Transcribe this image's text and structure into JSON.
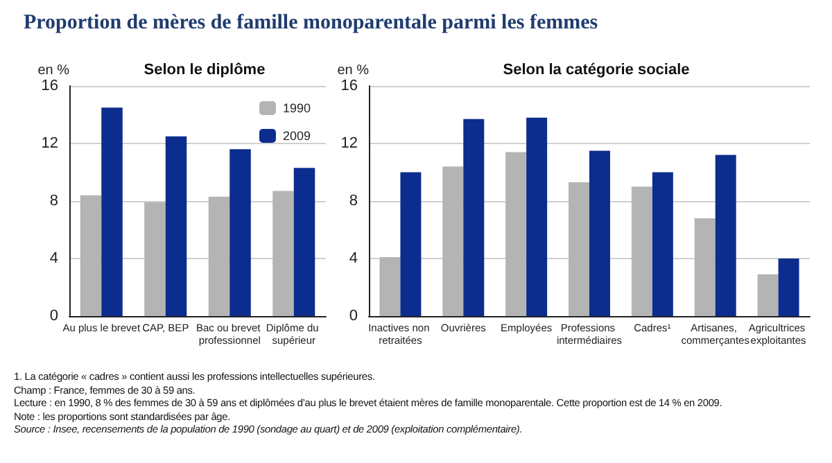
{
  "chart_data": [
    {
      "type": "bar",
      "title": "Proportion de mères de famille monoparentale parmi les femmes",
      "subtitle": "Selon le diplôme",
      "ylabel": "en %",
      "categories": [
        "Au plus le brevet",
        "CAP, BEP",
        "Bac ou brevet professionnel",
        "Diplôme du supérieur"
      ],
      "series": [
        {
          "name": "1990",
          "color": "#b4b4b4",
          "values": [
            8.4,
            7.9,
            8.3,
            8.7
          ]
        },
        {
          "name": "2009",
          "color": "#0c2d8e",
          "values": [
            14.5,
            12.5,
            11.6,
            10.3
          ]
        }
      ],
      "ylim": [
        0,
        16
      ],
      "yticks": [
        0,
        4,
        8,
        12,
        16
      ],
      "grid": "y",
      "legend": "top right",
      "annotations": [
        "1. La catégorie « cadres » contient aussi les professions intellectuelles supérieures.",
        "Champ : France, femmes de 30 à 59 ans.",
        "Lecture : en 1990, 8 % des femmes de 30 à 59 ans et diplômées d’au plus le brevet étaient mères de famille monoparentale. Cette proportion est de 14 % en 2009.",
        "Note : les proportions sont standardisées par âge.",
        "Source : Insee, recensements de la population de 1990 (sondage au quart) et de 2009 (exploitation complémentaire)."
      ]
    },
    {
      "type": "bar",
      "title": "Selon la catégorie sociale",
      "ylabel": "en %",
      "categories": [
        "Inactives non retraitées",
        "Ouvrières",
        "Employées",
        "Professions intermédiaires",
        "Cadres¹",
        "Artisanes, commerçantes",
        "Agricultrices exploitantes"
      ],
      "series": [
        {
          "color": "#b4b4b4",
          "values": [
            4.1,
            10.4,
            11.4,
            9.3,
            9.0,
            6.8,
            2.9
          ]
        },
        {
          "color": "#0c2d8e",
          "values": [
            10.0,
            13.7,
            13.8,
            11.5,
            10.0,
            11.2,
            4.0
          ]
        }
      ],
      "ylim": [
        0,
        16
      ],
      "yticks": [
        0,
        4,
        8,
        12,
        16
      ],
      "grid": "y",
      "legend": false
    }
  ]
}
